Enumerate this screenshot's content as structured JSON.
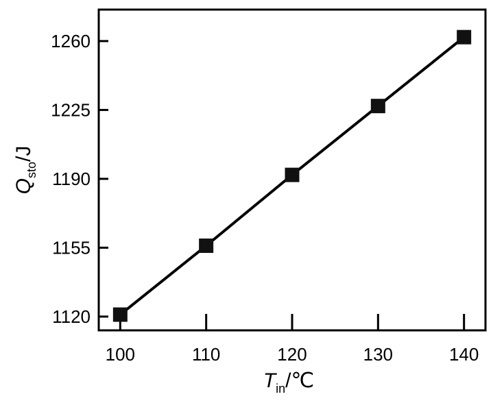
{
  "chart_data": {
    "type": "line",
    "x": [
      100,
      110,
      120,
      130,
      140
    ],
    "series": [
      {
        "values": [
          1121,
          1156,
          1192,
          1227,
          1262
        ]
      }
    ],
    "x_ticks": [
      "100",
      "110",
      "120",
      "130",
      "140"
    ],
    "y_ticks": [
      "1120",
      "1155",
      "1190",
      "1225",
      "1260"
    ],
    "xlim": [
      97.5,
      142.5
    ],
    "ylim": [
      1113,
      1276
    ],
    "xlabel": {
      "symbol": "T",
      "subscript": "in",
      "unit": "/℃"
    },
    "ylabel": {
      "symbol": "Q",
      "subscript": "sto",
      "unit": "/J"
    },
    "marker": "filled-square",
    "grid": false,
    "colors": {
      "line": "#000000",
      "marker": "#111111",
      "frame": "#000000"
    }
  }
}
